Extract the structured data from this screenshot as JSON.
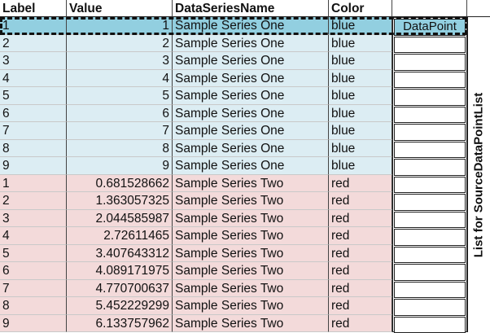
{
  "columns": {
    "label": "Label",
    "value": "Value",
    "series": "DataSeriesName",
    "color": "Color"
  },
  "rows": [
    {
      "label": "1",
      "value": "1",
      "series": "Sample Series One",
      "color": "blue"
    },
    {
      "label": "2",
      "value": "2",
      "series": "Sample Series One",
      "color": "blue"
    },
    {
      "label": "3",
      "value": "3",
      "series": "Sample Series One",
      "color": "blue"
    },
    {
      "label": "4",
      "value": "4",
      "series": "Sample Series One",
      "color": "blue"
    },
    {
      "label": "5",
      "value": "5",
      "series": "Sample Series One",
      "color": "blue"
    },
    {
      "label": "6",
      "value": "6",
      "series": "Sample Series One",
      "color": "blue"
    },
    {
      "label": "7",
      "value": "7",
      "series": "Sample Series One",
      "color": "blue"
    },
    {
      "label": "8",
      "value": "8",
      "series": "Sample Series One",
      "color": "blue"
    },
    {
      "label": "9",
      "value": "9",
      "series": "Sample Series One",
      "color": "blue"
    },
    {
      "label": "1",
      "value": "0.681528662",
      "series": "Sample Series Two",
      "color": "red"
    },
    {
      "label": "2",
      "value": "1.363057325",
      "series": "Sample Series Two",
      "color": "red"
    },
    {
      "label": "3",
      "value": "2.044585987",
      "series": "Sample Series Two",
      "color": "red"
    },
    {
      "label": "4",
      "value": "2.72611465",
      "series": "Sample Series Two",
      "color": "red"
    },
    {
      "label": "5",
      "value": "3.407643312",
      "series": "Sample Series Two",
      "color": "red"
    },
    {
      "label": "6",
      "value": "4.089171975",
      "series": "Sample Series Two",
      "color": "red"
    },
    {
      "label": "7",
      "value": "4.770700637",
      "series": "Sample Series Two",
      "color": "red"
    },
    {
      "label": "8",
      "value": "5.452229299",
      "series": "Sample Series Two",
      "color": "red"
    },
    {
      "label": "9",
      "value": "6.133757962",
      "series": "Sample Series Two",
      "color": "red"
    }
  ],
  "list": {
    "first_item": "DataPoint",
    "item_count": 18,
    "title": "List for SourceDataPointList"
  },
  "colors": {
    "series_one_bg": "#dcedf3",
    "series_two_bg": "#f3dada",
    "selected_bg": "#92cfe0"
  }
}
